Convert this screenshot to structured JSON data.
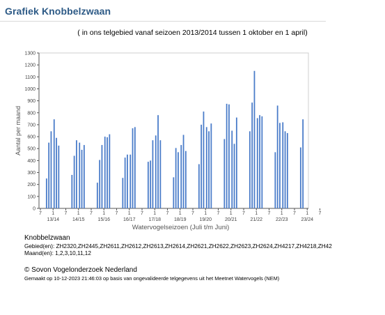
{
  "header": {
    "title": "Grafiek Knobbelzwaan",
    "subtitle": "( in ons telgebied vanaf seizoen 2013/2014 tussen 1 oktober en 1 april)"
  },
  "footer": {
    "species": "Knobbelzwaan",
    "gebied": "Gebied(en):  ZH2320,ZH2445,ZH2611,ZH2612,ZH2613,ZH2614,ZH2621,ZH2622,ZH2623,ZH2624,ZH4217,ZH4218,ZH42",
    "maand": "Maand(en):  1,2,3,10,11,12",
    "copyright": "© Sovon Vogelonderzoek Nederland",
    "gemaakt": "Gemaakt op 10-12-2023 21:46:03 op basis van ongevalideerde telgegevens uit het Meetnet Watervogels (NEM)"
  },
  "chart_data": {
    "type": "bar",
    "ylabel": "Aantal per maand",
    "xlabel": "Watervogelseizoen (Juli t/m Juni)",
    "ylim": [
      0,
      1300
    ],
    "yticks": [
      0,
      100,
      200,
      300,
      400,
      500,
      600,
      700,
      800,
      900,
      1000,
      1100,
      1200,
      1300
    ],
    "month_tick_labels": [
      "7",
      "1"
    ],
    "bar_months": [
      "10",
      "11",
      "12",
      "1",
      "2",
      "3"
    ],
    "color": "#4a7cc9",
    "seasons": [
      {
        "label": "13/14",
        "values": [
          250,
          550,
          645,
          745,
          590,
          525
        ]
      },
      {
        "label": "14/15",
        "values": [
          280,
          440,
          570,
          550,
          490,
          530
        ]
      },
      {
        "label": "15/16",
        "values": [
          215,
          405,
          530,
          600,
          595,
          620
        ]
      },
      {
        "label": "16/17",
        "values": [
          255,
          425,
          450,
          450,
          670,
          680
        ]
      },
      {
        "label": "17/18",
        "values": [
          390,
          400,
          570,
          610,
          780,
          570
        ]
      },
      {
        "label": "18/19",
        "values": [
          260,
          505,
          470,
          530,
          615,
          480
        ]
      },
      {
        "label": "19/20",
        "values": [
          370,
          700,
          810,
          680,
          645,
          710
        ]
      },
      {
        "label": "20/21",
        "values": [
          580,
          875,
          870,
          650,
          540,
          760
        ]
      },
      {
        "label": "21/22",
        "values": [
          645,
          885,
          1150,
          755,
          780,
          770
        ]
      },
      {
        "label": "22/23",
        "values": [
          470,
          860,
          715,
          720,
          645,
          630
        ]
      },
      {
        "label": "23/24",
        "values": [
          510,
          745
        ]
      }
    ]
  }
}
